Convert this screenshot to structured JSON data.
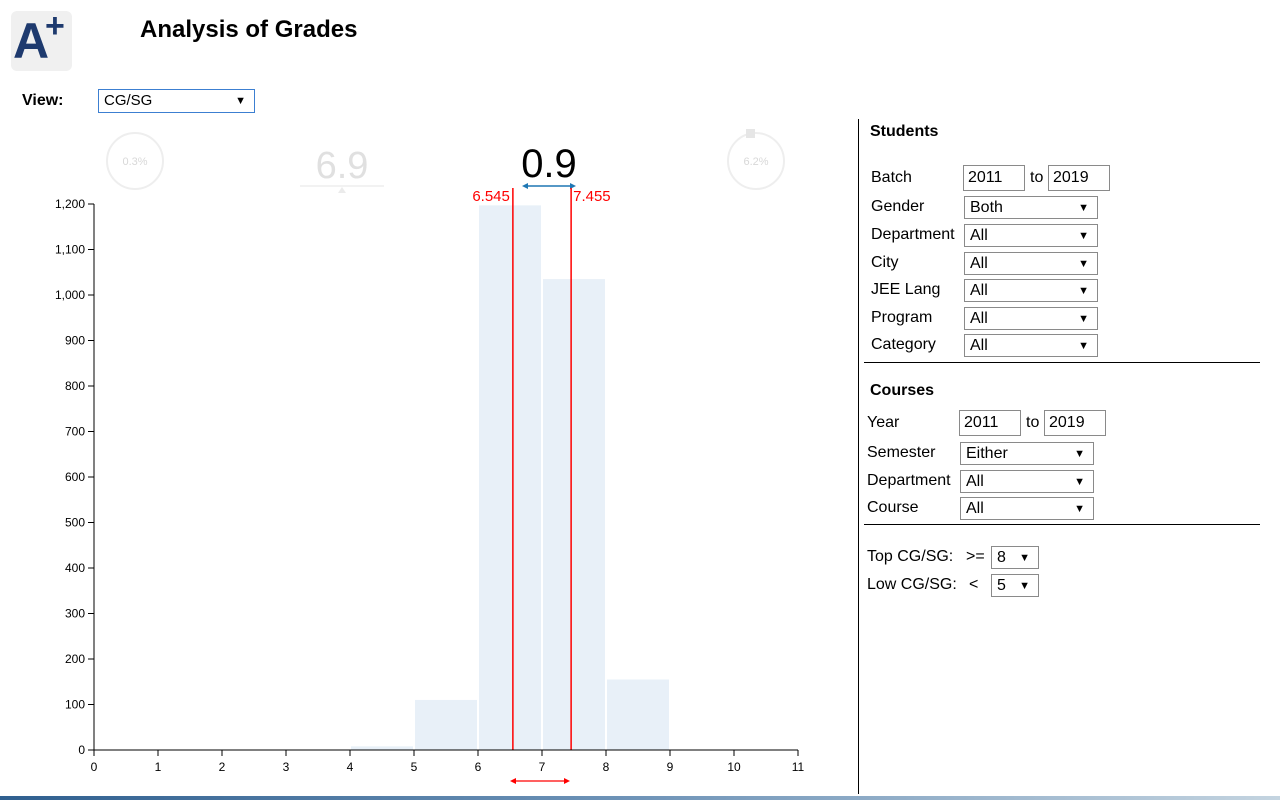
{
  "app": {
    "title": "Analysis of Grades",
    "logo_letter": "A",
    "logo_plus": "+"
  },
  "view": {
    "label": "View:",
    "selected": "CG/SG"
  },
  "gauges": {
    "left_percent": "0.3%",
    "right_percent": "6.2%",
    "mean": "6.9",
    "std": "0.9",
    "range_low": "6.545",
    "range_high": "7.455"
  },
  "students": {
    "title": "Students",
    "batch_label": "Batch",
    "batch_from": "2011",
    "batch_to_label": "to",
    "batch_to": "2019",
    "gender_label": "Gender",
    "gender": "Both",
    "department_label": "Department",
    "department": "All",
    "city_label": "City",
    "city": "All",
    "jee_lang_label": "JEE Lang",
    "jee_lang": "All",
    "program_label": "Program",
    "program": "All",
    "category_label": "Category",
    "category": "All"
  },
  "courses": {
    "title": "Courses",
    "year_label": "Year",
    "year_from": "2011",
    "year_to_label": "to",
    "year_to": "2019",
    "semester_label": "Semester",
    "semester": "Either",
    "department_label": "Department",
    "department": "All",
    "course_label": "Course",
    "course": "All"
  },
  "thresholds": {
    "top_label": "Top CG/SG:",
    "top_op": ">=",
    "top_value": "8",
    "low_label": "Low CG/SG:",
    "low_op": "<",
    "low_value": "5"
  },
  "colors": {
    "bar": "#e8f0f8",
    "range_line": "#ff0000",
    "std_arrow": "#1f77b4",
    "faded": "#dcdcdc"
  },
  "chart_data": {
    "type": "bar",
    "x": [
      4.5,
      5.5,
      6.5,
      7.5,
      8.5
    ],
    "bin_width": 1,
    "values": [
      8,
      110,
      1197,
      1035,
      155
    ],
    "xlim": [
      0,
      11
    ],
    "ylim": [
      0,
      1200
    ],
    "xticks": [
      "0",
      "1",
      "2",
      "3",
      "4",
      "5",
      "6",
      "7",
      "8",
      "9",
      "10",
      "11"
    ],
    "yticks": [
      "0",
      "100",
      "200",
      "300",
      "400",
      "500",
      "600",
      "700",
      "800",
      "900",
      "1,000",
      "1,100",
      "1,200"
    ],
    "markers": [
      6.545,
      7.455
    ],
    "grid": false,
    "legend": "none"
  }
}
